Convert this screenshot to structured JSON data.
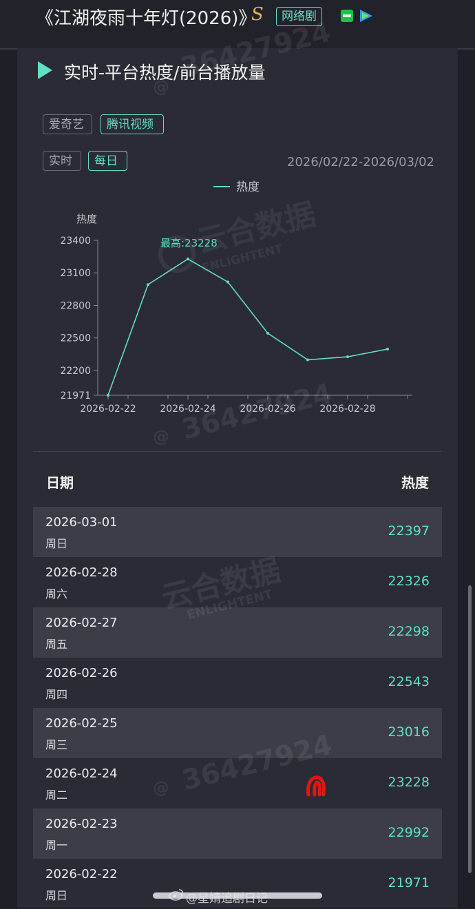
{
  "header": {
    "title": "《江湖夜雨十年灯(2026)》",
    "s_badge": "S",
    "genre_tag": "网络剧",
    "platform_icons": [
      "iqiyi-icon",
      "tencent-video-icon"
    ]
  },
  "section": {
    "title": "实时-平台热度/前台播放量",
    "platform_tabs": [
      "爱奇艺",
      "腾讯视频"
    ],
    "active_platform": "腾讯视频",
    "mode_tabs": [
      "实时",
      "每日"
    ],
    "active_mode": "每日",
    "date_range": "2026/02/22-2026/03/02"
  },
  "chart_data": {
    "type": "line",
    "legend": "热度",
    "ylabel": "热度",
    "y_ticks": [
      "23400",
      "23100",
      "22800",
      "22500",
      "22200",
      "21971"
    ],
    "x_ticks": [
      "2026-02-22",
      "2026-02-24",
      "2026-02-26",
      "2026-02-28"
    ],
    "ylim": [
      21971,
      23400
    ],
    "x": [
      "2026-02-22",
      "2026-02-23",
      "2026-02-24",
      "2026-02-25",
      "2026-02-26",
      "2026-02-27",
      "2026-02-28",
      "2026-03-01"
    ],
    "series": [
      {
        "name": "热度",
        "values": [
          21971,
          22992,
          23228,
          23016,
          22543,
          22298,
          22326,
          22397
        ]
      }
    ],
    "max_annotation": "最高:23228",
    "color": "#5fe0c3",
    "grid": false
  },
  "table": {
    "col_date": "日期",
    "col_heat": "热度",
    "rows": [
      {
        "date": "2026-03-01",
        "weekday": "周日",
        "value": "22397"
      },
      {
        "date": "2026-02-28",
        "weekday": "周六",
        "value": "22326"
      },
      {
        "date": "2026-02-27",
        "weekday": "周五",
        "value": "22298"
      },
      {
        "date": "2026-02-26",
        "weekday": "周四",
        "value": "22543"
      },
      {
        "date": "2026-02-25",
        "weekday": "周三",
        "value": "23016"
      },
      {
        "date": "2026-02-24",
        "weekday": "周二",
        "value": "23228"
      },
      {
        "date": "2026-02-23",
        "weekday": "周一",
        "value": "22992"
      },
      {
        "date": "2026-02-22",
        "weekday": "周日",
        "value": "21971"
      }
    ]
  },
  "watermarks": {
    "id": "36427924",
    "at": "@",
    "brand": "云合数据",
    "brand_en": "ENLIGHTENT"
  },
  "credit": "@星婧追剧日记",
  "colors": {
    "accent": "#5fe0c3",
    "background": "#1f1f27",
    "card": "#2b2b35",
    "row_shade": "#3d3d47"
  }
}
